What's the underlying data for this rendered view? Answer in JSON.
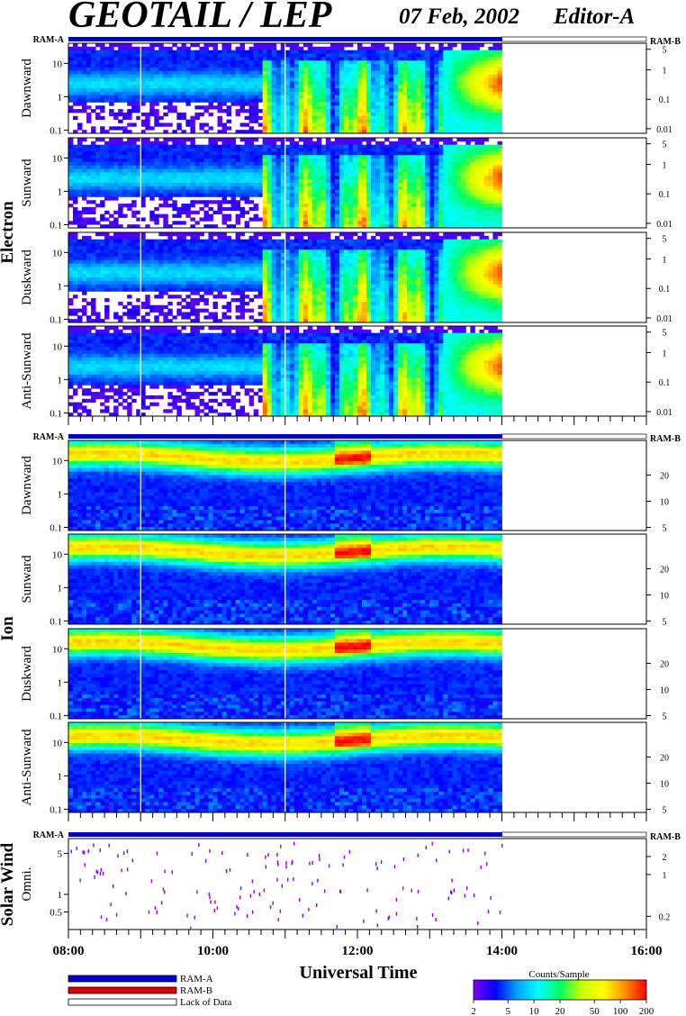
{
  "header": {
    "title": "GEOTAIL / LEP",
    "date": "07 Feb, 2002",
    "editor": "Editor-A"
  },
  "chart_data": {
    "type": "heatmap",
    "xlabel": "Universal Time",
    "x_ticks": [
      "08:00",
      "10:00",
      "12:00",
      "14:00",
      "16:00"
    ],
    "x_range_hours": [
      8,
      16
    ],
    "data_end_hour": 14,
    "ram_labels": {
      "left": "RAM-A",
      "right": "RAM-B"
    },
    "species": [
      {
        "name": "Electron",
        "panels": [
          "Dawnward",
          "Sunward",
          "Duskward",
          "Anti-Sunward"
        ],
        "left_ticks": [
          {
            "value": 10,
            "label": "10"
          },
          {
            "value": 1,
            "label": "1"
          },
          {
            "value": 0.1,
            "label": "0.1"
          }
        ],
        "left_range": [
          0.08,
          40
        ],
        "right_ticks": [
          {
            "value": 5,
            "label": "5"
          },
          {
            "value": 1,
            "label": "1"
          },
          {
            "value": 0.1,
            "label": "0.1"
          },
          {
            "value": 0.01,
            "label": "0.01"
          }
        ],
        "right_range": [
          0.007,
          8
        ]
      },
      {
        "name": "Ion",
        "panels": [
          "Dawnward",
          "Sunward",
          "Duskward",
          "Anti-Sunward"
        ],
        "left_ticks": [
          {
            "value": 10,
            "label": "10"
          },
          {
            "value": 1,
            "label": "1"
          },
          {
            "value": 0.1,
            "label": "0.1"
          }
        ],
        "left_range": [
          0.08,
          40
        ],
        "right_ticks": [
          {
            "value": 20,
            "label": "20"
          },
          {
            "value": 10,
            "label": "10"
          },
          {
            "value": 5,
            "label": "5"
          }
        ],
        "right_range": [
          4.6,
          50
        ]
      },
      {
        "name": "Solar Wind",
        "panels": [
          "Omni."
        ],
        "left_ticks": [
          {
            "value": 5,
            "label": "5"
          },
          {
            "value": 1,
            "label": "1"
          },
          {
            "value": 0.5,
            "label": "0.5"
          }
        ],
        "left_range": [
          0.25,
          9
        ],
        "right_ticks": [
          {
            "value": 2,
            "label": "2"
          },
          {
            "value": 1,
            "label": "1"
          },
          {
            "value": 0.2,
            "label": "0.2"
          }
        ],
        "right_range": [
          0.12,
          4
        ]
      }
    ],
    "legend": {
      "items": [
        {
          "label": "RAM-A",
          "color": "#0000cc"
        },
        {
          "label": "RAM-B",
          "color": "#dd0000"
        },
        {
          "label": "Lack of Data",
          "color": "#ffffff"
        }
      ]
    },
    "colorbar": {
      "title": "Counts/Sample",
      "ticks": [
        "2",
        "5",
        "10",
        "20",
        "50",
        "100",
        "200"
      ],
      "colors": [
        "#8000ff",
        "#0000ff",
        "#00a0ff",
        "#00ffff",
        "#00ff60",
        "#c8ff00",
        "#ffff00",
        "#ff9000",
        "#ff0000"
      ]
    }
  }
}
